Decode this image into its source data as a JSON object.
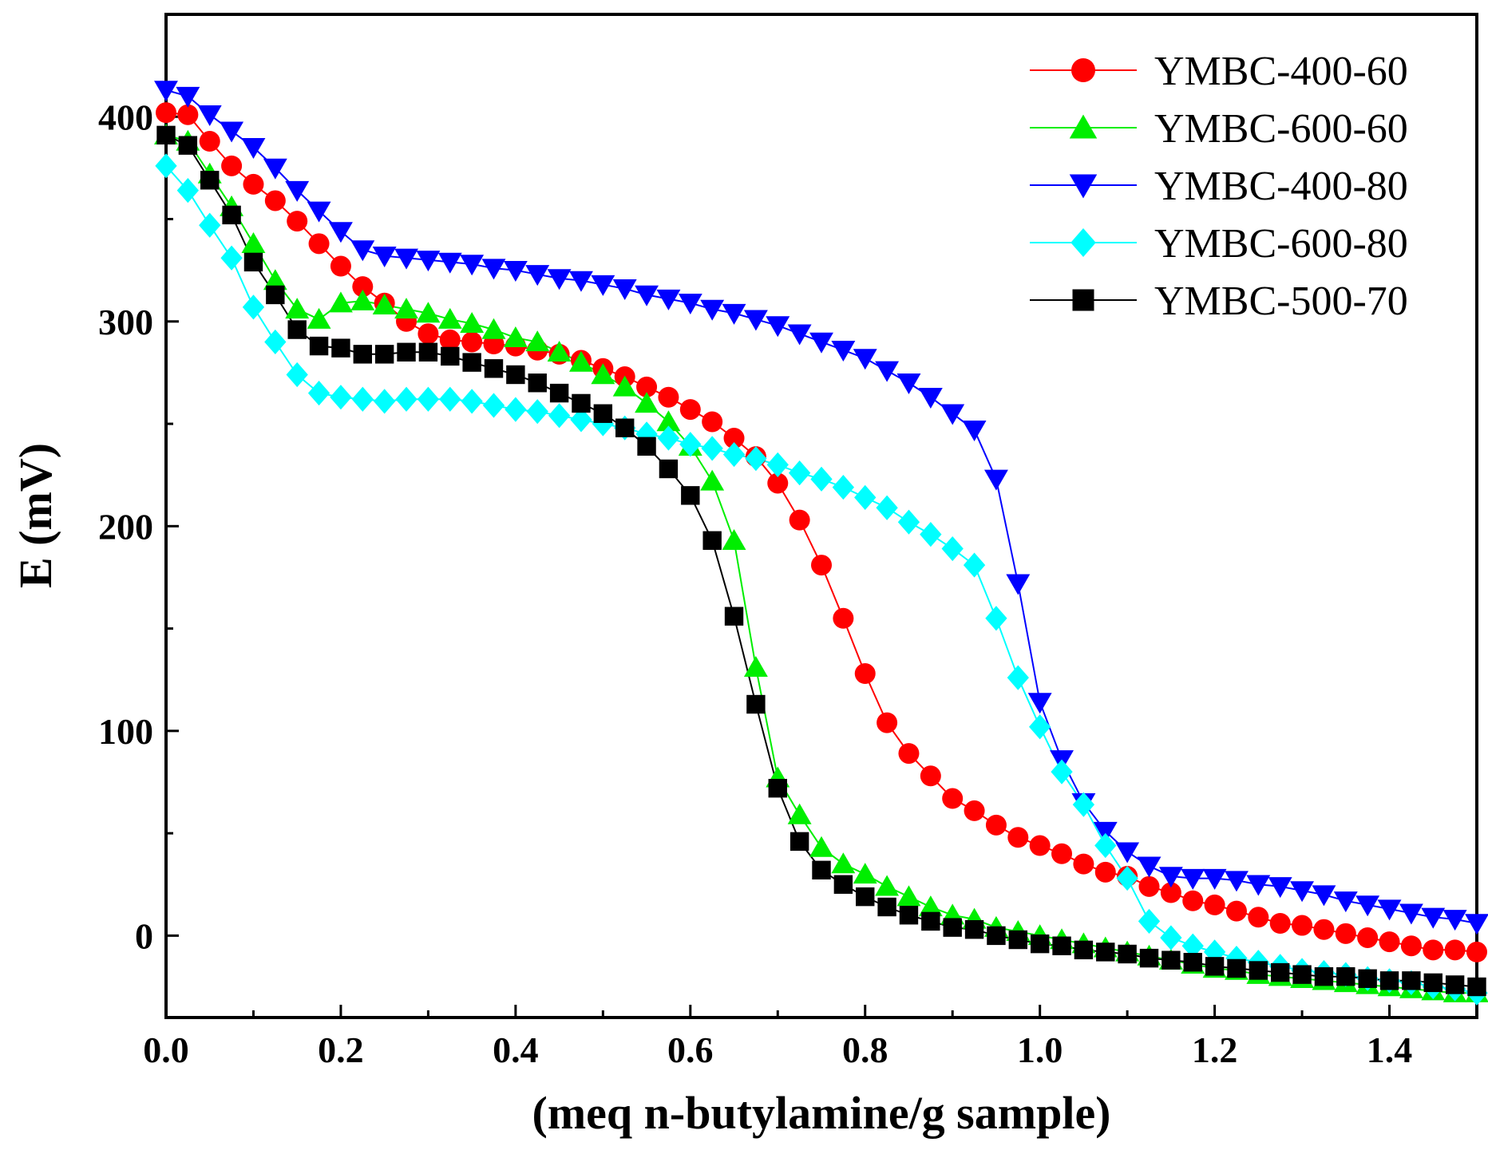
{
  "chart_data": {
    "type": "line",
    "title": "",
    "xlabel": "(meq n-butylamine/g sample)",
    "ylabel": "E (mV)",
    "xlim": [
      0.0,
      1.5
    ],
    "ylim": [
      -40,
      450
    ],
    "xticks": [
      "0.0",
      "0.2",
      "0.4",
      "0.6",
      "0.8",
      "1.0",
      "1.2",
      "1.4"
    ],
    "xtick_values": [
      0.0,
      0.2,
      0.4,
      0.6,
      0.8,
      1.0,
      1.2,
      1.4
    ],
    "yticks": [
      "0",
      "100",
      "200",
      "300",
      "400"
    ],
    "ytick_values": [
      0,
      100,
      200,
      300,
      400
    ],
    "legend_position": "top-right",
    "x": [
      0.0,
      0.025,
      0.05,
      0.075,
      0.1,
      0.125,
      0.15,
      0.175,
      0.2,
      0.225,
      0.25,
      0.275,
      0.3,
      0.325,
      0.35,
      0.375,
      0.4,
      0.425,
      0.45,
      0.475,
      0.5,
      0.525,
      0.55,
      0.575,
      0.6,
      0.625,
      0.65,
      0.675,
      0.7,
      0.725,
      0.75,
      0.775,
      0.8,
      0.825,
      0.85,
      0.875,
      0.9,
      0.925,
      0.95,
      0.975,
      1.0,
      1.025,
      1.05,
      1.075,
      1.1,
      1.125,
      1.15,
      1.175,
      1.2,
      1.225,
      1.25,
      1.275,
      1.3,
      1.325,
      1.35,
      1.375,
      1.4,
      1.425,
      1.45,
      1.475,
      1.5
    ],
    "series": [
      {
        "name": "YMBC-400-60",
        "color": "#ff0000",
        "marker": "circle",
        "values": [
          402,
          401,
          388,
          376,
          367,
          359,
          349,
          338,
          327,
          317,
          309,
          300,
          294,
          291,
          290,
          289,
          288,
          286,
          284,
          281,
          277,
          273,
          268,
          263,
          257,
          251,
          243,
          234,
          221,
          203,
          181,
          155,
          128,
          104,
          89,
          78,
          67,
          61,
          54,
          48,
          44,
          40,
          35,
          31,
          29,
          24,
          21,
          17,
          15,
          12,
          9,
          6,
          5,
          3,
          1,
          -1,
          -3,
          -5,
          -7,
          -7,
          -8
        ]
      },
      {
        "name": "YMBC-600-60",
        "color": "#00ee00",
        "marker": "triangle-up",
        "values": [
          391,
          388,
          372,
          356,
          338,
          320,
          306,
          301,
          309,
          310,
          308,
          306,
          304,
          301,
          299,
          296,
          292,
          290,
          285,
          280,
          274,
          268,
          260,
          251,
          239,
          222,
          193,
          131,
          77,
          59,
          43,
          35,
          30,
          24,
          19,
          14,
          10,
          8,
          4,
          2,
          0,
          -2,
          -4,
          -6,
          -8,
          -10,
          -12,
          -14,
          -16,
          -17,
          -19,
          -20,
          -21,
          -22,
          -23,
          -24,
          -25,
          -26,
          -27,
          -28,
          -28
        ]
      },
      {
        "name": "YMBC-400-80",
        "color": "#0000ff",
        "marker": "triangle-down",
        "values": [
          413,
          410,
          401,
          393,
          385,
          375,
          364,
          354,
          344,
          335,
          332,
          331,
          330,
          329,
          328,
          326,
          325,
          323,
          321,
          320,
          318,
          316,
          313,
          311,
          309,
          306,
          304,
          301,
          298,
          294,
          290,
          286,
          282,
          276,
          270,
          263,
          255,
          247,
          223,
          172,
          114,
          86,
          65,
          51,
          41,
          34,
          29,
          28,
          28,
          27,
          25,
          24,
          22,
          20,
          17,
          15,
          13,
          11,
          9,
          8,
          6
        ]
      },
      {
        "name": "YMBC-600-80",
        "color": "#00ffff",
        "marker": "diamond",
        "values": [
          376,
          364,
          347,
          331,
          307,
          290,
          274,
          265,
          263,
          262,
          261,
          262,
          262,
          262,
          261,
          259,
          257,
          256,
          254,
          252,
          250,
          248,
          245,
          243,
          240,
          238,
          235,
          233,
          230,
          226,
          223,
          219,
          214,
          209,
          202,
          196,
          189,
          181,
          155,
          126,
          102,
          80,
          64,
          44,
          28,
          7,
          -1,
          -5,
          -8,
          -11,
          -13,
          -15,
          -17,
          -18,
          -19,
          -21,
          -22,
          -23,
          -25,
          -26,
          -28
        ]
      },
      {
        "name": "YMBC-500-70",
        "color": "#000000",
        "marker": "square",
        "values": [
          391,
          386,
          369,
          352,
          329,
          313,
          296,
          288,
          287,
          284,
          284,
          285,
          285,
          283,
          280,
          277,
          274,
          270,
          265,
          260,
          255,
          248,
          239,
          228,
          215,
          193,
          156,
          113,
          72,
          46,
          32,
          25,
          19,
          14,
          10,
          7,
          4,
          3,
          0,
          -2,
          -4,
          -5,
          -7,
          -8,
          -9,
          -11,
          -12,
          -13,
          -15,
          -16,
          -17,
          -18,
          -19,
          -20,
          -20,
          -21,
          -22,
          -22,
          -23,
          -24,
          -25
        ]
      }
    ]
  }
}
